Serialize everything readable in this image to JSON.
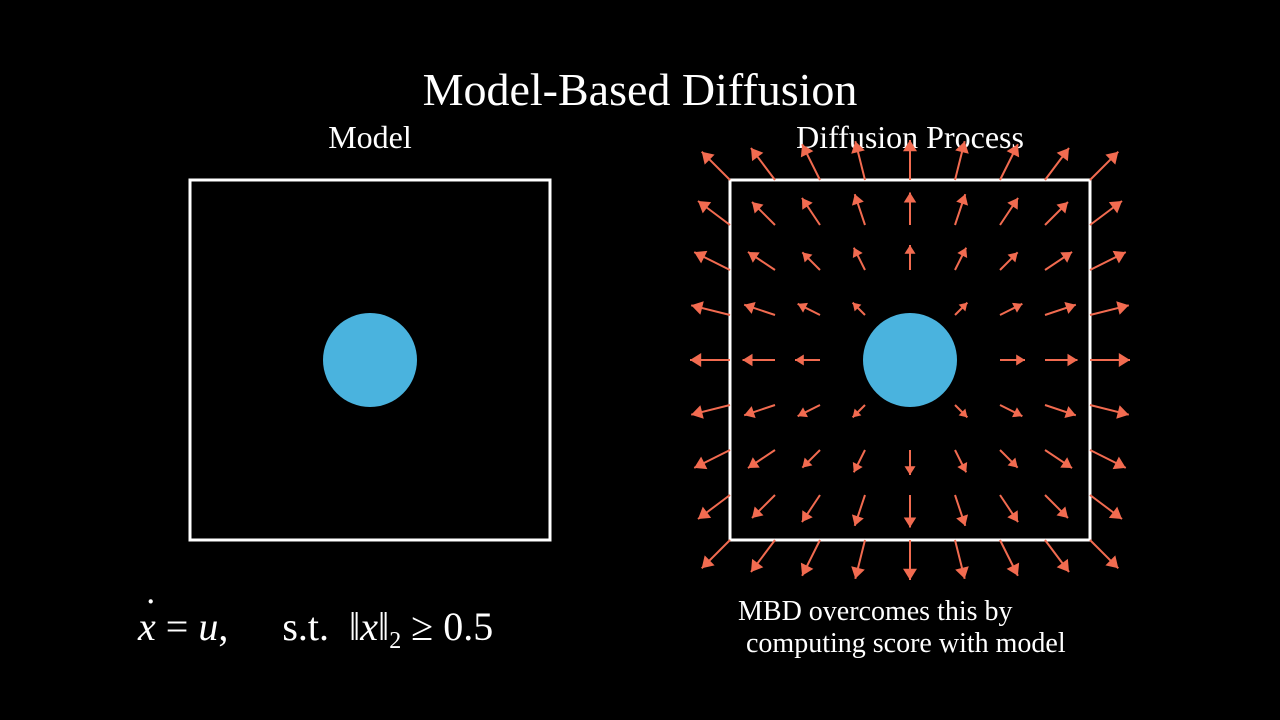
{
  "title": "Model-Based Diffusion",
  "panels": {
    "model": {
      "title": "Model"
    },
    "diffusion": {
      "title": "Diffusion Process"
    }
  },
  "equation": {
    "lhs_var": "x",
    "rhs_var": "u",
    "constraint_prefix": "s.t.",
    "norm_var": "x",
    "norm_sub": "2",
    "relation": "≥",
    "bound": "0.5"
  },
  "caption": {
    "line1": "MBD overcomes this by",
    "line2": "computing score with model"
  },
  "colors": {
    "background": "#000000",
    "frame": "#ffffff",
    "obstacle": "#4ab3de",
    "arrow": "#f26b50"
  }
}
